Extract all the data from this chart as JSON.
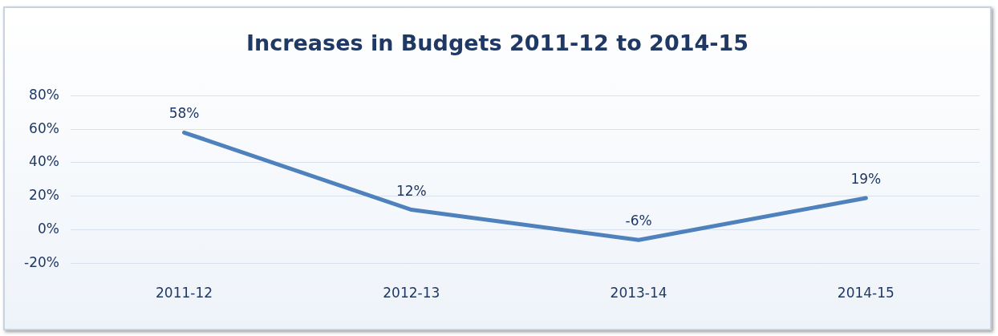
{
  "chart_data": {
    "type": "line",
    "title": "Increases in Budgets 2011-12 to 2014-15",
    "categories": [
      "2011-12",
      "2012-13",
      "2013-14",
      "2014-15"
    ],
    "values": [
      58,
      12,
      -6,
      19
    ],
    "value_labels": [
      "58%",
      "12%",
      "-6%",
      "19%"
    ],
    "color": "#4f81bd",
    "ylim": [
      -20,
      80
    ],
    "yticks": [
      {
        "value": -20,
        "label": "-20%"
      },
      {
        "value": 0,
        "label": "0%"
      },
      {
        "value": 20,
        "label": "20%"
      },
      {
        "value": 40,
        "label": "40%"
      },
      {
        "value": 60,
        "label": "60%"
      },
      {
        "value": 80,
        "label": "80%"
      }
    ],
    "grid": "y",
    "legend": false,
    "marker": "none",
    "line_style": "solid"
  }
}
